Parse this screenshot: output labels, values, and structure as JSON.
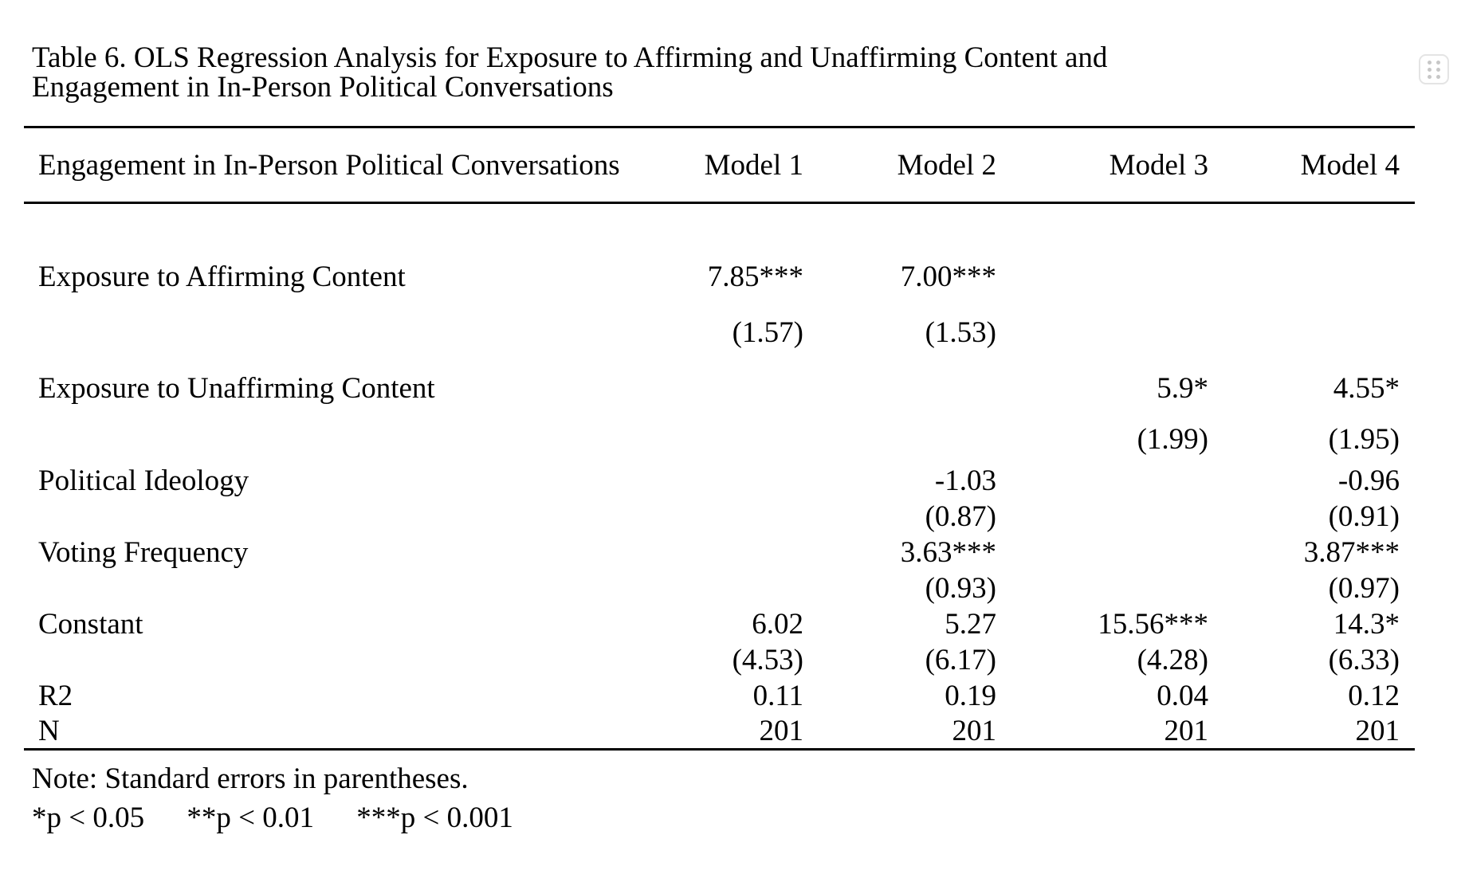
{
  "caption": "Table 6. OLS Regression Analysis for Exposure to Affirming and Unaffirming Content and Engagement in In-Person Political Conversations",
  "header": {
    "label": "Engagement in In-Person Political Conversations",
    "columns": [
      "Model 1",
      "Model 2",
      "Model 3",
      "Model 4"
    ]
  },
  "rows": [
    {
      "label": "Exposure to Affirming Content",
      "values": [
        "7.85***",
        "7.00***",
        "",
        ""
      ]
    },
    {
      "label": "",
      "values": [
        "(1.57)",
        "(1.53)",
        "",
        ""
      ]
    },
    {
      "label": "Exposure to Unaffirming Content",
      "values": [
        "",
        "",
        "5.9*",
        "4.55*"
      ]
    },
    {
      "label": "",
      "values": [
        "",
        "",
        "(1.99)",
        "(1.95)"
      ]
    },
    {
      "label": "Political Ideology",
      "values": [
        "",
        "-1.03",
        "",
        "-0.96"
      ]
    },
    {
      "label": "",
      "values": [
        "",
        "(0.87)",
        "",
        "(0.91)"
      ]
    },
    {
      "label": "Voting Frequency",
      "values": [
        "",
        "3.63***",
        "",
        "3.87***"
      ]
    },
    {
      "label": "",
      "values": [
        "",
        "(0.93)",
        "",
        "(0.97)"
      ]
    },
    {
      "label": "Constant",
      "values": [
        "6.02",
        "5.27",
        "15.56***",
        "14.3*"
      ]
    },
    {
      "label": "",
      "values": [
        "(4.53)",
        "(6.17)",
        "(4.28)",
        "(6.33)"
      ]
    },
    {
      "label": "R2",
      "values": [
        "0.11",
        "0.19",
        "0.04",
        "0.12"
      ]
    },
    {
      "label": "N",
      "values": [
        "201",
        "201",
        "201",
        "201"
      ]
    }
  ],
  "notes": {
    "standard_errors": "Note: Standard errors in parentheses.",
    "significance": [
      "*p < 0.05",
      "**p < 0.01",
      "***p < 0.001"
    ]
  },
  "icons": {
    "drag_handle": "six-dot-grid"
  },
  "colors": {
    "text": "#000000",
    "background": "#ffffff",
    "rule": "#000000",
    "handle_border": "#e4e4e4",
    "handle_dots": "#c7c7c7"
  }
}
